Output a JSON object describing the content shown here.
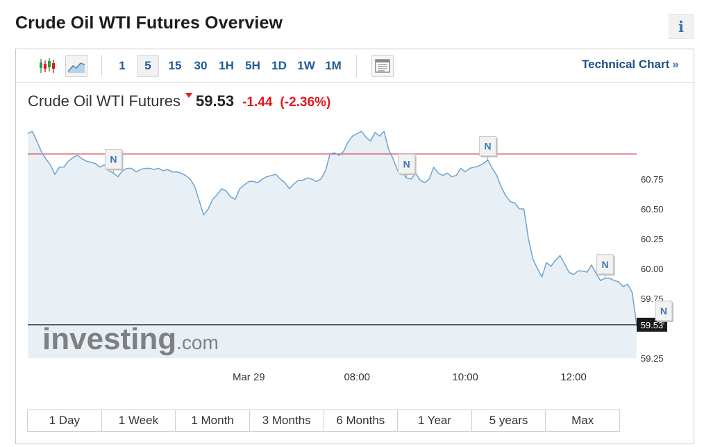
{
  "page": {
    "title": "Crude Oil WTI Futures Overview",
    "info_label": "i"
  },
  "toolbar": {
    "timeframes": [
      "1",
      "5",
      "15",
      "30",
      "1H",
      "5H",
      "1D",
      "1W",
      "1M"
    ],
    "active_timeframe": "5",
    "technical_chart_label": "Technical Chart",
    "technical_chart_arrow": "»"
  },
  "quote": {
    "name": "Crude Oil WTI Futures",
    "price": "59.53",
    "change": "-1.44",
    "change_pct": "(-2.36%)",
    "direction": "down"
  },
  "colors": {
    "line": "#6fa3cc",
    "area_fill": "#e8eff5",
    "reference_line": "#d64a55",
    "last_price_line": "#222222",
    "price_tag_bg": "#1a1a1a",
    "up": "#2e9c3c",
    "down": "#e0181e",
    "link": "#1f5a96"
  },
  "watermark": {
    "brand": "investing",
    "suffix": ".com"
  },
  "chart_data": {
    "type": "area",
    "y_ticks": [
      "60.75",
      "60.50",
      "60.25",
      "60.00",
      "59.75",
      "59.25"
    ],
    "ylim": [
      59.25,
      61.25
    ],
    "x_ticks": [
      {
        "label": "Mar 29",
        "t": 49
      },
      {
        "label": "08:00",
        "t": 73
      },
      {
        "label": "10:00",
        "t": 97
      },
      {
        "label": "12:00",
        "t": 121
      }
    ],
    "reference_line": 60.96,
    "last_price": 59.53,
    "last_price_label": "59.53",
    "series": [
      {
        "values": [
          61.13,
          61.15,
          61.07,
          60.98,
          60.92,
          60.87,
          60.79,
          60.85,
          60.85,
          60.9,
          60.93,
          60.95,
          60.92,
          60.9,
          60.89,
          60.88,
          60.85,
          60.87,
          60.82,
          60.8,
          60.77,
          60.82,
          60.84,
          60.84,
          60.81,
          60.83,
          60.84,
          60.84,
          60.83,
          60.84,
          60.82,
          60.83,
          60.81,
          60.81,
          60.8,
          60.78,
          60.75,
          60.69,
          60.57,
          60.45,
          60.5,
          60.58,
          60.62,
          60.67,
          60.65,
          60.6,
          60.58,
          60.67,
          60.7,
          60.73,
          60.73,
          60.72,
          60.75,
          60.77,
          60.78,
          60.79,
          60.75,
          60.72,
          60.67,
          60.71,
          60.74,
          60.74,
          60.76,
          60.75,
          60.73,
          60.75,
          60.82,
          60.96,
          60.97,
          60.95,
          60.98,
          61.06,
          61.11,
          61.13,
          61.15,
          61.1,
          61.07,
          61.14,
          61.11,
          61.15,
          61.0,
          60.92,
          60.82,
          60.8,
          60.76,
          60.75,
          60.8,
          60.74,
          60.72,
          60.75,
          60.85,
          60.8,
          60.78,
          60.8,
          60.77,
          60.78,
          60.84,
          60.81,
          60.84,
          60.85,
          60.86,
          60.88,
          60.91,
          60.84,
          60.78,
          60.68,
          60.61,
          60.56,
          60.55,
          60.5,
          60.5,
          60.25,
          60.08,
          60.0,
          59.93,
          60.05,
          60.02,
          60.07,
          60.11,
          60.04,
          59.97,
          59.95,
          59.98,
          59.98,
          59.97,
          60.03,
          59.96,
          59.9,
          59.92,
          59.92,
          59.9,
          59.89,
          59.85,
          59.87,
          59.8,
          59.53
        ]
      }
    ],
    "news_markers": [
      {
        "t": 19,
        "label": "N"
      },
      {
        "t": 84,
        "label": "N"
      },
      {
        "t": 102,
        "label": "N"
      },
      {
        "t": 128,
        "label": "N"
      },
      {
        "t": 141,
        "label": "N"
      }
    ],
    "grid": false
  },
  "time_ranges": [
    "1 Day",
    "1 Week",
    "1 Month",
    "3 Months",
    "6 Months",
    "1 Year",
    "5 years",
    "Max"
  ]
}
